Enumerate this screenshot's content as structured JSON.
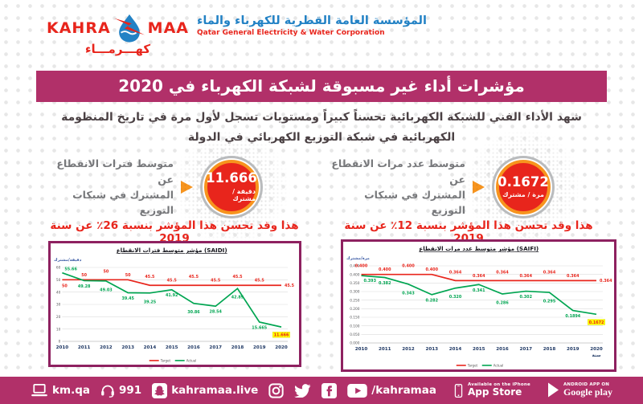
{
  "header": {
    "logo_kahra": "KAHRA",
    "logo_maa": "MAA",
    "org_name_ar": "المؤسسة العامة القطرية للكهرباء والماء",
    "org_name_en": "Qatar General Electricity & Water Corporation",
    "wordmark_ar": "كهـــرمـــاء"
  },
  "banner": {
    "title": "مؤشرات أداء غير مسبوقة لشبكة الكهرباء في 2020"
  },
  "intro": {
    "line1": "شهد الأداء الفني للشبكة الكهربائية تحسناً كبيراً ومستويات تسجل لأول مرة في تاريخ المنظومة",
    "line2": "الكهربائية في شبكة التوزيع الكهربائي في الدولة"
  },
  "indicators": [
    {
      "label_line1": "متوسط فترات الانقطاع عن",
      "label_line2": "المشترك في شبكات التوزيع",
      "value": "11.666",
      "unit": "دقيقة / مشترك",
      "improvement": "هذا وقد تحسن هذا المؤشر بنسبة 26٪ عن سنة 2019"
    },
    {
      "label_line1": "متوسط عدد مرات الانقطاع عن",
      "label_line2": "المشترك في شبكات التوزيع",
      "value": "0.1672",
      "unit": "مرة / مشترك",
      "improvement": "هذا وقد تحسن هذا المؤشر بنسبة 12٪ عن سنة 2019"
    }
  ],
  "chart_data": [
    {
      "type": "line",
      "title": "مؤشر متوسط فترات الانقطاع (SAIDI)",
      "ylabel": "دقيقة/مشترك",
      "xlabel": "",
      "categories": [
        "2010",
        "2011",
        "2012",
        "2013",
        "2014",
        "2015",
        "2016",
        "2017",
        "2018",
        "2019",
        "2020"
      ],
      "ylim": [
        0,
        60
      ],
      "yticks": [
        0,
        10,
        20,
        30,
        40,
        50,
        60
      ],
      "ytick_labels": [
        "0",
        "10",
        "20",
        "30",
        "40",
        "50",
        "60"
      ],
      "grid": true,
      "legend_position": "bottom",
      "series": [
        {
          "name": "Target",
          "color": "#e8251c",
          "values": [
            50,
            50,
            50,
            50,
            45.5,
            45.5,
            45.5,
            45.5,
            45.5,
            45.5,
            45.5
          ],
          "labels": [
            "50",
            "50",
            "50",
            "50",
            "45.5",
            "45.5",
            "45.5",
            "45.5",
            "45.5",
            "45.5",
            "45.5"
          ]
        },
        {
          "name": "Actual",
          "color": "#00a551",
          "values": [
            55.66,
            49.28,
            49.03,
            39.45,
            39.25,
            41.92,
            30.86,
            28.54,
            42.89,
            15.665,
            11.666
          ],
          "labels": [
            "55.66",
            "49.28",
            "49.03",
            "39.45",
            "39.25",
            "41.92",
            "30.86",
            "28.54",
            "42.89",
            "15.665",
            "11.666"
          ]
        }
      ],
      "highlight_last_actual": true
    },
    {
      "type": "line",
      "title": "مؤشر متوسط عدد مرات الانقطاع (SAIFI)",
      "ylabel": "مرة/مشترك",
      "xlabel": "سنة",
      "categories": [
        "2010",
        "2011",
        "2012",
        "2013",
        "2014",
        "2015",
        "2016",
        "2017",
        "2018",
        "2019",
        "2020"
      ],
      "ylim": [
        0,
        0.45
      ],
      "yticks": [
        0,
        0.05,
        0.1,
        0.15,
        0.2,
        0.25,
        0.3,
        0.35,
        0.4,
        0.45
      ],
      "ytick_labels": [
        "0.000",
        "0.050",
        "0.100",
        "0.150",
        "0.200",
        "0.250",
        "0.300",
        "0.350",
        "0.400",
        "0.450"
      ],
      "grid": true,
      "legend_position": "bottom",
      "series": [
        {
          "name": "Target",
          "color": "#e8251c",
          "values": [
            0.4,
            0.4,
            0.4,
            0.4,
            0.364,
            0.364,
            0.364,
            0.364,
            0.364,
            0.364,
            0.364
          ],
          "labels": [
            "0.400",
            "0.400",
            "0.400",
            "0.400",
            "0.364",
            "0.364",
            "0.364",
            "0.364",
            "0.364",
            "0.364",
            "0.364"
          ]
        },
        {
          "name": "Actual",
          "color": "#00a551",
          "values": [
            0.393,
            0.382,
            0.343,
            0.282,
            0.32,
            0.341,
            0.286,
            0.302,
            0.295,
            0.1894,
            0.1672
          ],
          "labels": [
            "0.393",
            "0.382",
            "0.343",
            "0.282",
            "0.320",
            "0.341",
            "0.286",
            "0.302",
            "0.295",
            "0.1894",
            "0.1672"
          ]
        }
      ],
      "highlight_last_actual": true
    }
  ],
  "footer": {
    "website": "km.qa",
    "phone": "991",
    "snapchat_handle": "kahramaa.live",
    "youtube_handle": "/kahramaa",
    "appstore_small": "Available on the iPhone",
    "appstore_big": "App Store",
    "googleplay_small": "ANDROID APP ON",
    "googleplay_big": "Google play"
  },
  "colors": {
    "pink": "#b13069",
    "chart_border": "#8e2160",
    "red": "#e8251c",
    "orange": "#f7941e",
    "green": "#00a551",
    "navy": "#1f3864",
    "highlight": "#ffff00"
  }
}
